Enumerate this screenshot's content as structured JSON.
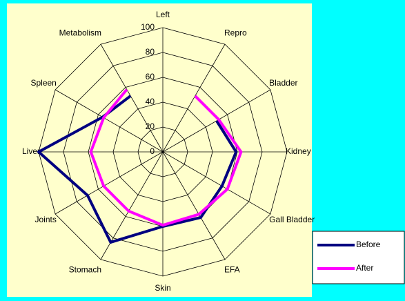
{
  "chart_data": {
    "type": "radar",
    "categories": [
      "Left",
      "Repro",
      "Bladder",
      "Kidney",
      "Gall Bladder",
      "EFA",
      "Skin",
      "Stomach",
      "Joints",
      "Liver",
      "Spleen",
      "Metabolism"
    ],
    "series": [
      {
        "name": "Before",
        "color": "#000080",
        "values": [
          null,
          null,
          50,
          59,
          55,
          61,
          60,
          84,
          70,
          100,
          56,
          52
        ]
      },
      {
        "name": "After",
        "color": "#ff00ff",
        "values": [
          null,
          52,
          52,
          63,
          60,
          58,
          59,
          55,
          55,
          58,
          55,
          58
        ]
      }
    ],
    "ylim": [
      0,
      100
    ],
    "yticks": [
      0,
      20,
      40,
      60,
      80,
      100
    ],
    "grid": true,
    "legend": "bottom-right"
  }
}
